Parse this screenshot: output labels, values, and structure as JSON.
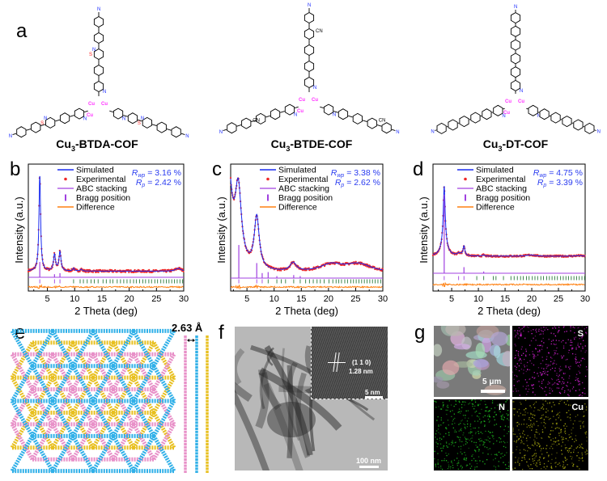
{
  "panel_labels": {
    "a": "a",
    "b": "b",
    "c": "c",
    "d": "d",
    "e": "e",
    "f": "f",
    "g": "g"
  },
  "structures": [
    {
      "prefix": "Cu",
      "sub": "3",
      "suffix": "-BTDA-COF",
      "linker": "BTDA",
      "cx": 122,
      "cy": 133
    },
    {
      "prefix": "Cu",
      "sub": "3",
      "suffix": "-BTDE-COF",
      "linker": "BTDE",
      "cx": 382,
      "cy": 128
    },
    {
      "prefix": "Cu",
      "sub": "3",
      "suffix": "-DT-COF",
      "linker": "DT",
      "cx": 637,
      "cy": 130
    }
  ],
  "atom_labels": {
    "cu": "Cu",
    "n": "N",
    "s": "S",
    "cn": "CN"
  },
  "colors": {
    "simulated": "#1a2cf0",
    "experimental": "#f02828",
    "abc": "#a040e0",
    "bragg_abc": "#a040e0",
    "bragg_other": "#2a7a3a",
    "difference": "#ff8010",
    "r_text": "#2a3cf0",
    "cu": "#ff30ff",
    "n": "#2030ff",
    "s": "#ff2020",
    "layer1": "#e890c8",
    "layer2": "#30b0e8",
    "layer3": "#e8c020"
  },
  "chart_data": [
    {
      "type": "line",
      "panel": "b",
      "xlabel": "2 Theta (deg)",
      "ylabel": "Intensity (a.u.)",
      "xlim": [
        1.5,
        30
      ],
      "xticks": [
        5,
        10,
        15,
        20,
        25,
        30
      ],
      "legend": [
        "Simulated",
        "Experimental",
        "ABC stacking",
        "Bragg position",
        "Difference"
      ],
      "legend_placement": "top",
      "rwp": "3.16 %",
      "rp": "2.42 %",
      "peaks": [
        [
          3.6,
          1.0,
          0.18
        ],
        [
          6.3,
          0.17,
          0.22
        ],
        [
          7.3,
          0.2,
          0.22
        ],
        [
          9.8,
          0.03,
          0.2
        ],
        [
          11.2,
          0.02,
          0.2
        ],
        [
          29,
          0.03,
          0.6
        ]
      ],
      "baseline": 0.03,
      "abc_sticks": [
        [
          3.6,
          0.15
        ],
        [
          6.3,
          0.03
        ],
        [
          7.3,
          0.04
        ]
      ],
      "bragg_positions": [
        3.6,
        6.3,
        7.3,
        9.8,
        11.0,
        11.6,
        12.3,
        13.0,
        13.6,
        14.3,
        15.2,
        15.8,
        16.5,
        17.0,
        17.8,
        18.4,
        19.0,
        19.6,
        20.2,
        20.8,
        21.3,
        21.9,
        22.5,
        23.0,
        23.6,
        24.1,
        24.7,
        25.2,
        25.8,
        26.3,
        26.8,
        27.3,
        27.8,
        28.3,
        28.8,
        29.3,
        29.8
      ]
    },
    {
      "type": "line",
      "panel": "c",
      "xlabel": "2 Theta (deg)",
      "ylabel": "Intensity (a.u.)",
      "xlim": [
        2,
        30
      ],
      "xticks": [
        5,
        10,
        15,
        20,
        25,
        30
      ],
      "legend": [
        "Simulated",
        "Experimental",
        "ABC stacking",
        "Bragg position",
        "Difference"
      ],
      "legend_placement": "top",
      "rwp": "3.38 %",
      "rp": "2.62 %",
      "peaks": [
        [
          1.4,
          1.2,
          0.9
        ],
        [
          3.4,
          0.78,
          0.7
        ],
        [
          6.8,
          0.55,
          0.55
        ],
        [
          13.5,
          0.09,
          0.7
        ],
        [
          20.5,
          0.08,
          2.5
        ],
        [
          25.5,
          0.09,
          3
        ]
      ],
      "baseline": 0.0,
      "abc_sticks": [
        [
          3.5,
          0.33
        ],
        [
          6.8,
          0.15
        ],
        [
          7.8,
          0.05
        ],
        [
          8.9,
          0.06
        ],
        [
          10.5,
          0.02
        ],
        [
          13.6,
          0.03
        ],
        [
          14.8,
          0.02
        ]
      ],
      "bragg_positions": [
        3.5,
        6.8,
        7.8,
        8.9,
        10.5,
        11.3,
        12.1,
        13.6,
        14.8,
        15.8,
        16.5,
        17.2,
        17.9,
        18.5,
        19.2,
        20.1,
        20.8,
        21.4,
        21.9,
        22.4,
        23.0,
        23.5,
        24.1,
        24.6,
        25.1,
        25.6,
        26.1,
        26.6,
        27.1,
        27.6,
        28.1,
        28.6,
        29.1,
        29.6
      ]
    },
    {
      "type": "line",
      "panel": "d",
      "xlabel": "2 Theta (deg)",
      "ylabel": "Intensity (a.u.)",
      "xlim": [
        1.5,
        30
      ],
      "xticks": [
        5,
        10,
        15,
        20,
        25,
        30
      ],
      "legend": [
        "Simulated",
        "Experimental",
        "ABC stacking",
        "Bragg position",
        "Difference"
      ],
      "legend_placement": "top",
      "rwp": "4.75 %",
      "rp": "3.39 %",
      "peaks": [
        [
          3.6,
          0.85,
          0.2
        ],
        [
          3.6,
          0.25,
          0.6
        ],
        [
          7.3,
          0.15,
          0.2
        ],
        [
          6.4,
          0.04,
          0.4
        ],
        [
          11.0,
          0.02,
          0.2
        ],
        [
          19.8,
          0.02,
          1.0
        ],
        [
          28.8,
          0.01,
          0.8
        ]
      ],
      "baseline": 0.0,
      "abc_sticks": [
        [
          3.6,
          0.9
        ],
        [
          7.3,
          0.07
        ],
        [
          11.0,
          0.02
        ]
      ],
      "bragg_positions": [
        3.6,
        6.3,
        7.3,
        9.7,
        11.0,
        12.8,
        13.3,
        14.7,
        16.1,
        16.7,
        17.3,
        17.9,
        18.4,
        19.0,
        19.5,
        20.1,
        20.6,
        21.1,
        21.7,
        22.2,
        22.8,
        23.3,
        23.8,
        24.3,
        24.8,
        25.4,
        25.9,
        26.4,
        26.9,
        27.4,
        27.9,
        28.4,
        28.9,
        29.4,
        29.9
      ]
    }
  ],
  "panel_e": {
    "spacing_label": "2.63 Å"
  },
  "panel_f": {
    "lattice_label_hkl": "(1 1 0)",
    "lattice_spacing": "1.28 nm",
    "inset_scale": "5 nm",
    "scale": "100 nm"
  },
  "panel_g": {
    "scale": "5 μm",
    "maps": [
      "S",
      "N",
      "Cu"
    ]
  }
}
